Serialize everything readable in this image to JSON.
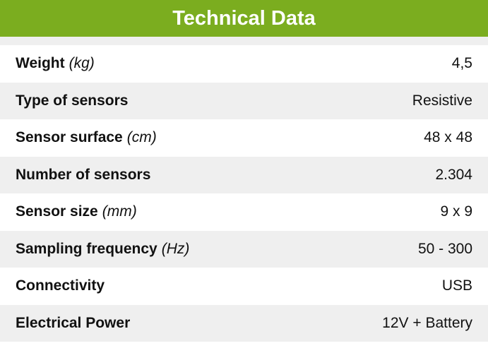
{
  "title": "Technical Data",
  "colors": {
    "header": "#7bad1f",
    "stripe": "#efefef"
  },
  "rows": [
    {
      "label": "Weight",
      "unit": "(kg)",
      "value": "4,5"
    },
    {
      "label": "Type of sensors",
      "unit": "",
      "value": "Resistive"
    },
    {
      "label": "Sensor surface",
      "unit": "(cm)",
      "value": "48 x 48"
    },
    {
      "label": "Number of sensors",
      "unit": "",
      "value": "2.304"
    },
    {
      "label": "Sensor size",
      "unit": "(mm)",
      "value": "9 x 9"
    },
    {
      "label": "Sampling frequency",
      "unit": "(Hz)",
      "value": "50 - 300"
    },
    {
      "label": "Connectivity",
      "unit": "",
      "value": "USB"
    },
    {
      "label": "Electrical Power",
      "unit": "",
      "value": "12V + Battery"
    }
  ]
}
